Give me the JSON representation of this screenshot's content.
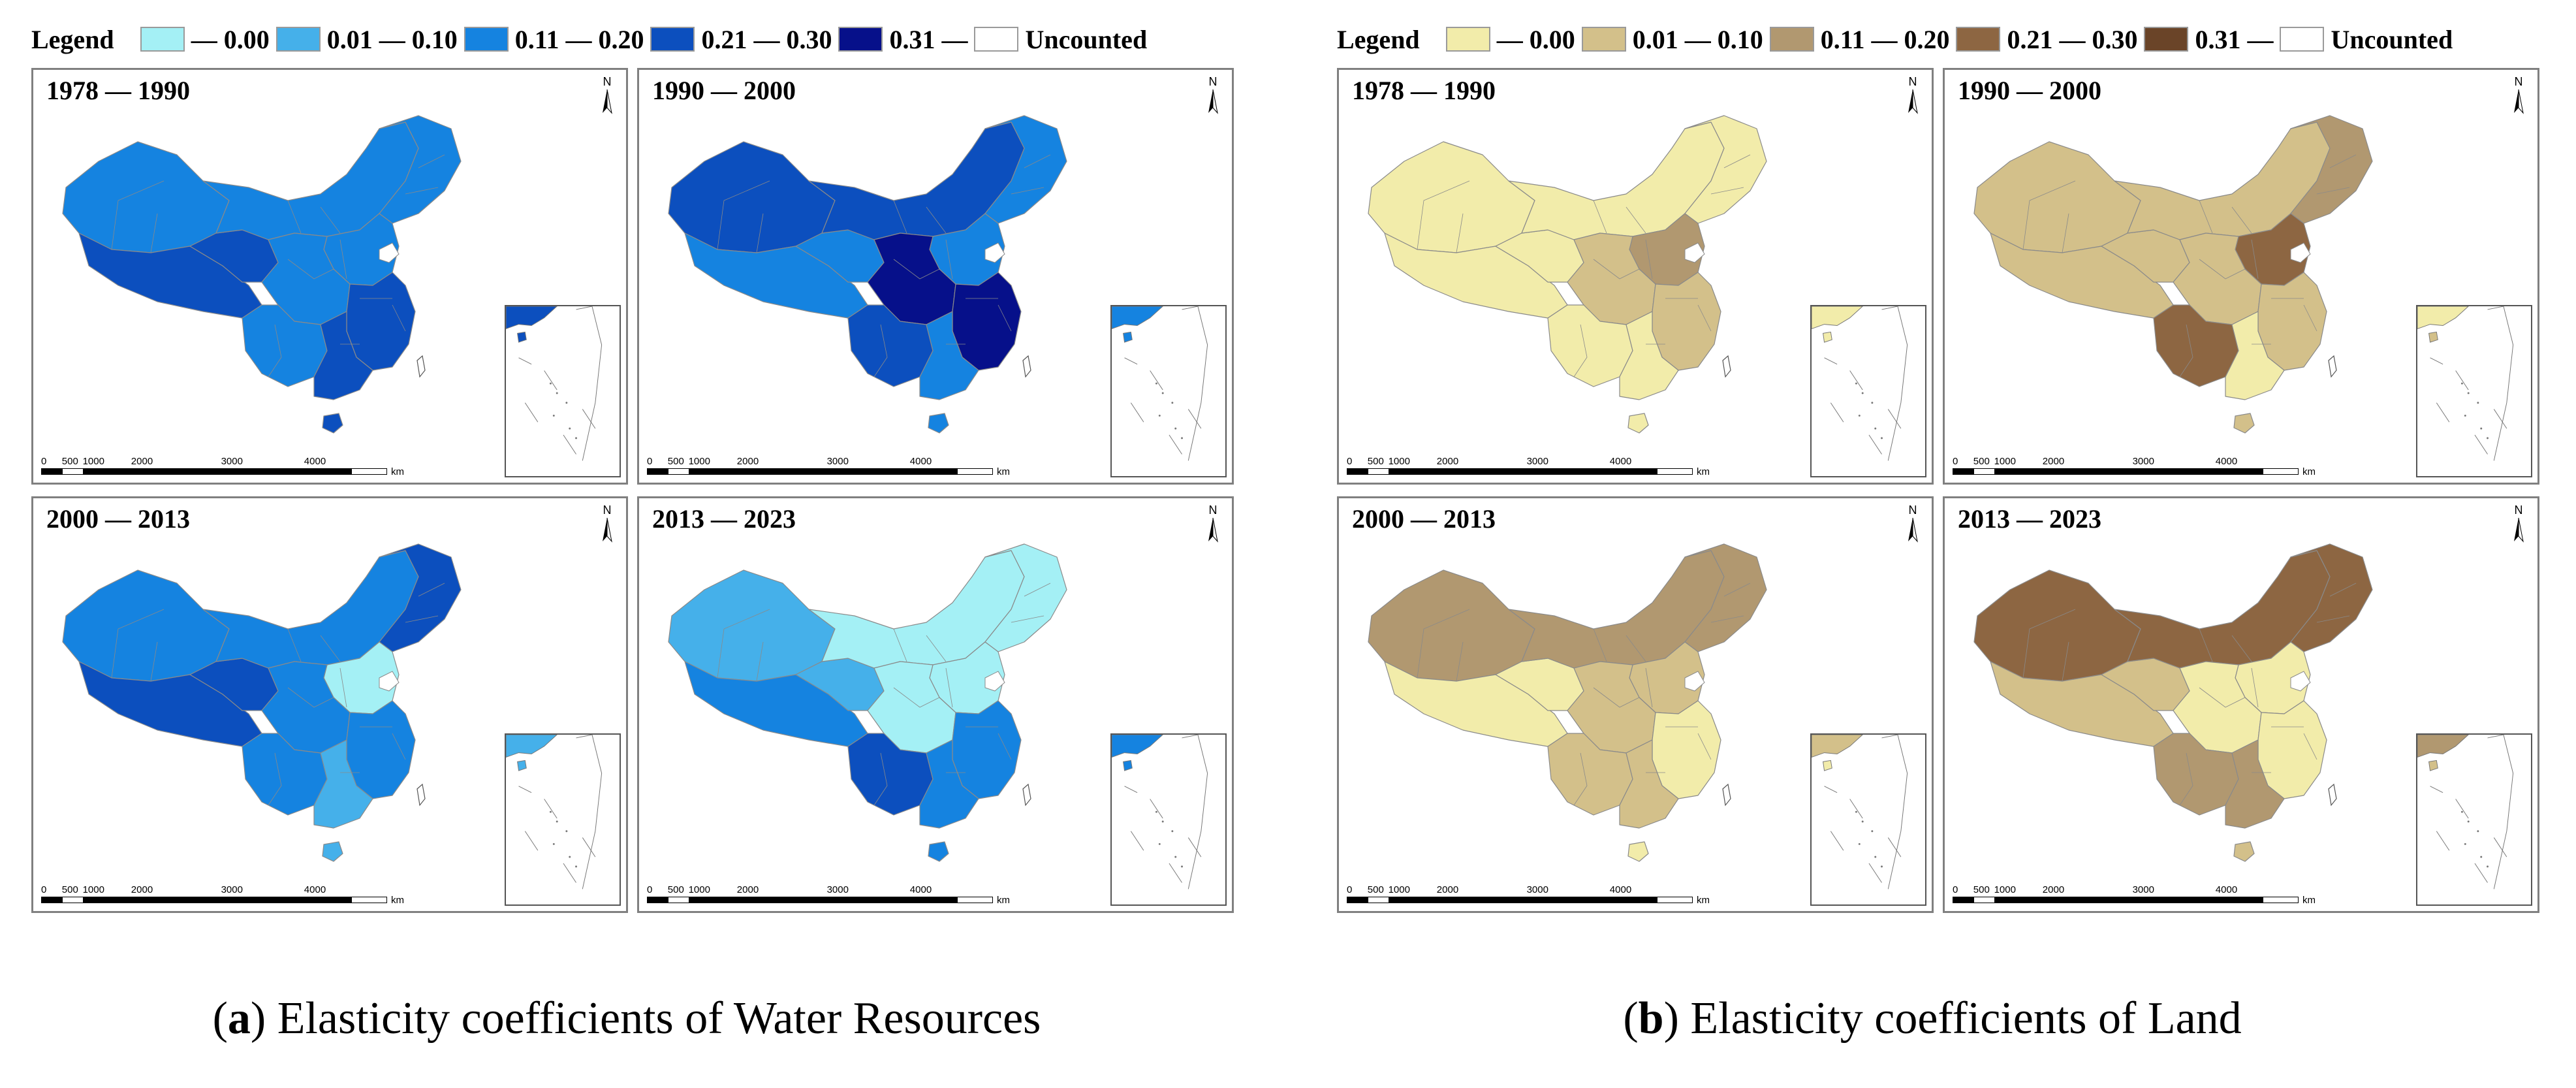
{
  "figures": [
    {
      "id": "a",
      "legend": {
        "title": "Legend",
        "items": [
          {
            "label": "— 0.00",
            "color": "#a4f0f5"
          },
          {
            "label": "0.01 — 0.10",
            "color": "#45b0ea"
          },
          {
            "label": "0.11 — 0.20",
            "color": "#1583e0"
          },
          {
            "label": "0.21 — 0.30",
            "color": "#0c4fbe"
          },
          {
            "label": "0.31 —",
            "color": "#06108a"
          },
          {
            "label": "Uncounted",
            "color": "#ffffff"
          }
        ]
      },
      "panels": [
        {
          "title": "1978 — 1990",
          "colors": {
            "xinjiang": "#1583e0",
            "tibet": "#0c4fbe",
            "qinghai": "#0c4fbe",
            "innermongolia": "#1583e0",
            "northeast": "#1583e0",
            "north": "#1583e0",
            "central": "#1583e0",
            "east": "#0c4fbe",
            "south": "#0c4fbe",
            "southwest": "#1583e0",
            "hainan": "#0c4fbe"
          }
        },
        {
          "title": "1990 — 2000",
          "colors": {
            "xinjiang": "#0c4fbe",
            "tibet": "#1583e0",
            "qinghai": "#1583e0",
            "innermongolia": "#0c4fbe",
            "northeast": "#1583e0",
            "north": "#1583e0",
            "central": "#06108a",
            "east": "#06108a",
            "south": "#1583e0",
            "southwest": "#0c4fbe",
            "hainan": "#1583e0"
          }
        },
        {
          "title": "2000 — 2013",
          "colors": {
            "xinjiang": "#1583e0",
            "tibet": "#0c4fbe",
            "qinghai": "#0c4fbe",
            "innermongolia": "#1583e0",
            "northeast": "#0c4fbe",
            "north": "#a4f0f5",
            "central": "#1583e0",
            "east": "#1583e0",
            "south": "#45b0ea",
            "southwest": "#1583e0",
            "hainan": "#45b0ea"
          }
        },
        {
          "title": "2013 — 2023",
          "colors": {
            "xinjiang": "#45b0ea",
            "tibet": "#1583e0",
            "qinghai": "#45b0ea",
            "innermongolia": "#a4f0f5",
            "northeast": "#a4f0f5",
            "north": "#a4f0f5",
            "central": "#a4f0f5",
            "east": "#1583e0",
            "south": "#1583e0",
            "southwest": "#0c4fbe",
            "hainan": "#1583e0"
          }
        }
      ],
      "caption": {
        "letter": "a",
        "text": " Elasticity coefficients of Water Resources"
      }
    },
    {
      "id": "b",
      "legend": {
        "title": "Legend",
        "items": [
          {
            "label": "— 0.00",
            "color": "#f2ecaa"
          },
          {
            "label": "0.01 — 0.10",
            "color": "#d3c08a"
          },
          {
            "label": "0.11 — 0.20",
            "color": "#b19870"
          },
          {
            "label": "0.21 — 0.30",
            "color": "#8d6642"
          },
          {
            "label": "0.31 —",
            "color": "#6a4428"
          },
          {
            "label": "Uncounted",
            "color": "#ffffff"
          }
        ]
      },
      "panels": [
        {
          "title": "1978 — 1990",
          "colors": {
            "xinjiang": "#f2ecaa",
            "tibet": "#f2ecaa",
            "qinghai": "#f2ecaa",
            "innermongolia": "#f2ecaa",
            "northeast": "#f2ecaa",
            "north": "#b19870",
            "central": "#d3c08a",
            "east": "#d3c08a",
            "south": "#f2ecaa",
            "southwest": "#f2ecaa",
            "hainan": "#f2ecaa"
          }
        },
        {
          "title": "1990 — 2000",
          "colors": {
            "xinjiang": "#d3c08a",
            "tibet": "#d3c08a",
            "qinghai": "#d3c08a",
            "innermongolia": "#d3c08a",
            "northeast": "#b19870",
            "north": "#8d6642",
            "central": "#d3c08a",
            "east": "#d3c08a",
            "south": "#f2ecaa",
            "southwest": "#8d6642",
            "hainan": "#d3c08a"
          }
        },
        {
          "title": "2000 — 2013",
          "colors": {
            "xinjiang": "#b19870",
            "tibet": "#f2ecaa",
            "qinghai": "#f2ecaa",
            "innermongolia": "#b19870",
            "northeast": "#b19870",
            "north": "#d3c08a",
            "central": "#d3c08a",
            "east": "#f2ecaa",
            "south": "#d3c08a",
            "southwest": "#d3c08a",
            "hainan": "#f2ecaa"
          }
        },
        {
          "title": "2013 — 2023",
          "colors": {
            "xinjiang": "#8d6642",
            "tibet": "#d3c08a",
            "qinghai": "#d3c08a",
            "innermongolia": "#8d6642",
            "northeast": "#8d6642",
            "north": "#f2ecaa",
            "central": "#f2ecaa",
            "east": "#f2ecaa",
            "south": "#b19870",
            "southwest": "#b19870",
            "hainan": "#d3c08a"
          }
        }
      ],
      "caption": {
        "letter": "b",
        "text": " Elasticity coefficients of Land"
      }
    }
  ],
  "scale": {
    "labels": [
      "0",
      "500",
      "1000",
      "2000",
      "3000",
      "4000"
    ],
    "unit": "km"
  },
  "north_label": "N"
}
